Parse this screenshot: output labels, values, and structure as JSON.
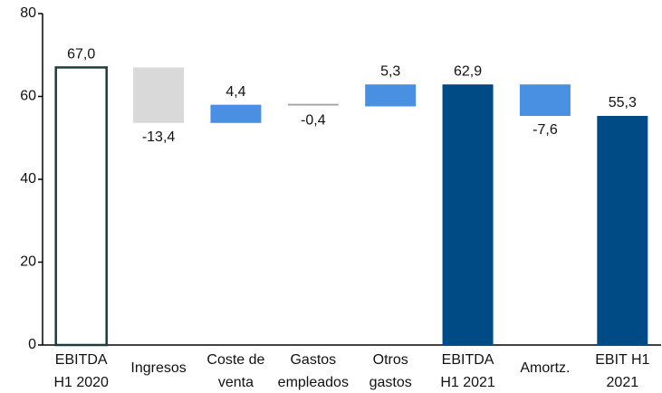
{
  "chart_data": {
    "type": "waterfall",
    "categories": [
      [
        "EBITDA",
        "H1 2020"
      ],
      [
        "Ingresos"
      ],
      [
        "Coste de",
        "venta"
      ],
      [
        "Gastos",
        "empleados"
      ],
      [
        "Otros",
        "gastos"
      ],
      [
        "EBITDA",
        "H1 2021"
      ],
      [
        "Amortz."
      ],
      [
        "EBIT H1",
        "2021"
      ]
    ],
    "values": [
      67.0,
      -13.4,
      4.4,
      -0.4,
      5.3,
      62.9,
      -7.6,
      55.3
    ],
    "value_labels": [
      "67,0",
      "-13,4",
      "4,4",
      "-0,4",
      "5,3",
      "62,9",
      "-7,6",
      "55,3"
    ],
    "measure": [
      "total",
      "relative",
      "relative",
      "relative",
      "relative",
      "total",
      "relative",
      "total"
    ],
    "colors": [
      "#ffffff",
      "#d9d9d9",
      "#4a90e2",
      "#a6a6a6",
      "#4a90e2",
      "#004b85",
      "#4a90e2",
      "#004b85"
    ],
    "strokes": [
      "#1e3d3a",
      "none",
      "none",
      "none",
      "none",
      "none",
      "none",
      "none"
    ],
    "ylim": [
      0,
      80
    ],
    "yticks": [
      0,
      20,
      40,
      60,
      80
    ]
  }
}
